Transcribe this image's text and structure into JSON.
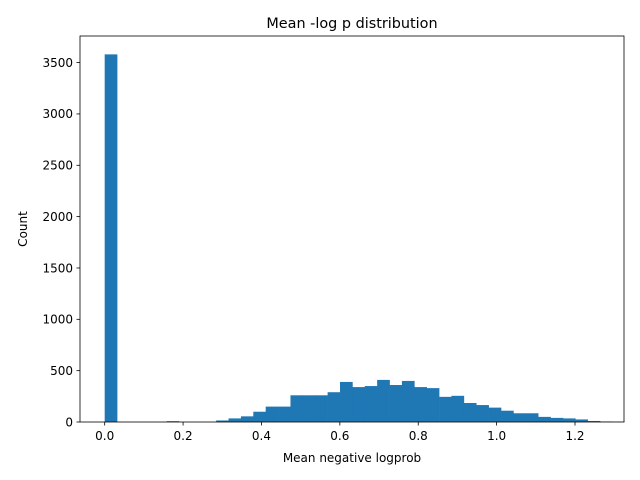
{
  "chart_data": {
    "type": "bar",
    "title": "Mean -log p distribution",
    "xlabel": "Mean negative logprob",
    "ylabel": "Count",
    "xlim": [
      -0.063,
      1.325
    ],
    "ylim": [
      0,
      3759
    ],
    "xticks": [
      0.0,
      0.2,
      0.4,
      0.6,
      0.8,
      1.0,
      1.2
    ],
    "xtick_labels": [
      "0.0",
      "0.2",
      "0.4",
      "0.6",
      "0.8",
      "1.0",
      "1.2"
    ],
    "yticks": [
      0,
      500,
      1000,
      1500,
      2000,
      2500,
      3000,
      3500
    ],
    "ytick_labels": [
      "0",
      "500",
      "1000",
      "1500",
      "2000",
      "2500",
      "3000",
      "3500"
    ],
    "bin_start": 0.0,
    "bin_width": 0.0316,
    "counts": [
      3580,
      0,
      0,
      0,
      0,
      8,
      0,
      0,
      0,
      15,
      35,
      55,
      100,
      150,
      150,
      260,
      260,
      260,
      290,
      390,
      340,
      350,
      410,
      360,
      400,
      340,
      330,
      245,
      255,
      185,
      165,
      140,
      110,
      85,
      85,
      50,
      40,
      35,
      25,
      10,
      5,
      2
    ],
    "grid": false,
    "legend": "none",
    "colors": {
      "bar": "#1f77b4",
      "axis": "#000000"
    }
  }
}
